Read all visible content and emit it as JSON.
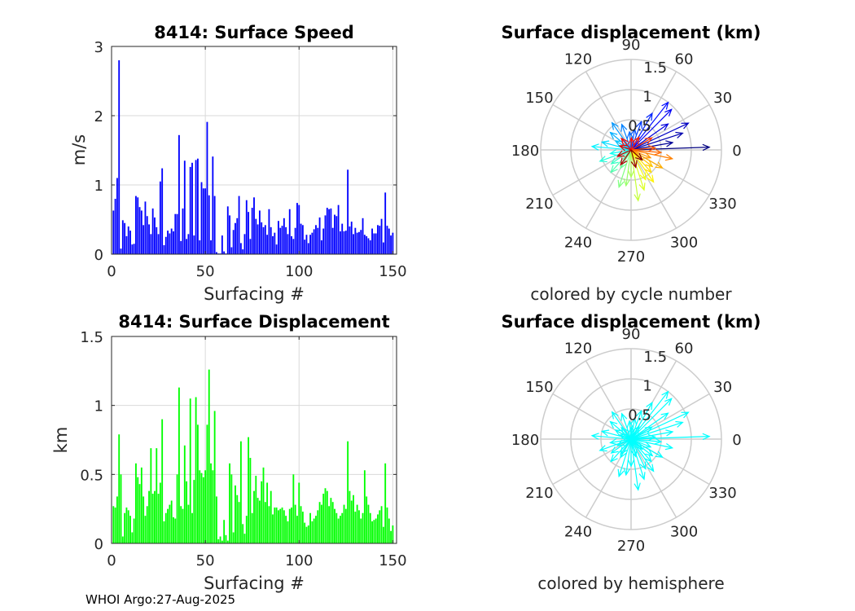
{
  "footer": "WHOI Argo:27-Aug-2025",
  "chart_data": [
    {
      "type": "bar",
      "title": "8414: Surface Speed",
      "xlabel": "Surfacing #",
      "ylabel": "m/s",
      "xlim": [
        0,
        152
      ],
      "ylim": [
        0,
        3
      ],
      "xticks": [
        0,
        50,
        100,
        150
      ],
      "yticks": [
        0,
        1,
        2,
        3
      ],
      "grid": true,
      "color": "#0000ff",
      "x": [
        1,
        2,
        3,
        4,
        5,
        6,
        7,
        8,
        9,
        10,
        11,
        12,
        13,
        14,
        15,
        16,
        17,
        18,
        19,
        20,
        21,
        22,
        23,
        24,
        25,
        26,
        27,
        28,
        29,
        30,
        31,
        32,
        33,
        34,
        35,
        36,
        37,
        38,
        39,
        40,
        41,
        42,
        43,
        44,
        45,
        46,
        47,
        48,
        49,
        50,
        51,
        52,
        53,
        54,
        55,
        56,
        57,
        58,
        59,
        60,
        61,
        62,
        63,
        64,
        65,
        66,
        67,
        68,
        69,
        70,
        71,
        72,
        73,
        74,
        75,
        76,
        77,
        78,
        79,
        80,
        81,
        82,
        83,
        84,
        85,
        86,
        87,
        88,
        89,
        90,
        91,
        92,
        93,
        94,
        95,
        96,
        97,
        98,
        99,
        100,
        101,
        102,
        103,
        104,
        105,
        106,
        107,
        108,
        109,
        110,
        111,
        112,
        113,
        114,
        115,
        116,
        117,
        118,
        119,
        120,
        121,
        122,
        123,
        124,
        125,
        126,
        127,
        128,
        129,
        130,
        131,
        132,
        133,
        134,
        135,
        136,
        137,
        138,
        139,
        140,
        141,
        142,
        143,
        144,
        145,
        146,
        147,
        148,
        149,
        150
      ],
      "values": [
        0.63,
        0.8,
        1.1,
        2.8,
        0.08,
        0.49,
        0.45,
        0.26,
        0.4,
        0.34,
        0.14,
        0.15,
        0.84,
        0.82,
        0.68,
        0.63,
        0.42,
        0.76,
        0.55,
        0.43,
        0.29,
        0.66,
        0.53,
        0.39,
        0.29,
        1.05,
        1.24,
        0.13,
        0.25,
        0.34,
        0.3,
        0.37,
        0.33,
        0.58,
        0.58,
        1.72,
        0.19,
        0.66,
        1.35,
        0.22,
        0.29,
        1.26,
        1.32,
        0.27,
        1.36,
        1.38,
        0.2,
        1.04,
        0.95,
        0.95,
        1.91,
        0.85,
        0.2,
        1.41,
        0.84,
        0.03,
        0.01,
        0.01,
        0.27,
        0.04,
        0.01,
        0.69,
        0.56,
        0.1,
        0.35,
        0.45,
        0.52,
        0.84,
        0.16,
        0.07,
        0.29,
        0.78,
        0.61,
        0.22,
        0.67,
        0.82,
        0.51,
        0.43,
        0.63,
        0.46,
        0.39,
        0.42,
        0.28,
        0.65,
        0.39,
        0.26,
        0.31,
        0.14,
        0.48,
        0.38,
        0.41,
        0.52,
        0.39,
        0.29,
        0.65,
        0.26,
        0.22,
        0.38,
        0.74,
        0.71,
        0.44,
        0.42,
        0.21,
        0.28,
        0.16,
        0.28,
        0.31,
        0.36,
        0.42,
        0.38,
        0.53,
        0.2,
        0.37,
        0.56,
        0.67,
        0.65,
        0.66,
        0.38,
        0.57,
        0.55,
        0.71,
        0.33,
        0.44,
        0.33,
        0.34,
        1.22,
        0.4,
        0.47,
        0.29,
        0.38,
        0.31,
        0.32,
        0.35,
        0.52,
        0.28,
        0.26,
        0.23,
        0.2,
        0.37,
        0.3,
        0.3,
        0.42,
        0.41,
        0.51,
        0.17,
        0.89,
        0.41,
        0.37,
        0.27,
        0.31
      ]
    },
    {
      "type": "bar",
      "title": "8414: Surface Displacement",
      "xlabel": "Surfacing #",
      "ylabel": "km",
      "xlim": [
        0,
        152
      ],
      "ylim": [
        0,
        1.5
      ],
      "xticks": [
        0,
        50,
        100,
        150
      ],
      "yticks": [
        0,
        0.5,
        1,
        1.5
      ],
      "grid": true,
      "color": "#00ff00",
      "x": [
        1,
        2,
        3,
        4,
        5,
        6,
        7,
        8,
        9,
        10,
        11,
        12,
        13,
        14,
        15,
        16,
        17,
        18,
        19,
        20,
        21,
        22,
        23,
        24,
        25,
        26,
        27,
        28,
        29,
        30,
        31,
        32,
        33,
        34,
        35,
        36,
        37,
        38,
        39,
        40,
        41,
        42,
        43,
        44,
        45,
        46,
        47,
        48,
        49,
        50,
        51,
        52,
        53,
        54,
        55,
        56,
        57,
        58,
        59,
        60,
        61,
        62,
        63,
        64,
        65,
        66,
        67,
        68,
        69,
        70,
        71,
        72,
        73,
        74,
        75,
        76,
        77,
        78,
        79,
        80,
        81,
        82,
        83,
        84,
        85,
        86,
        87,
        88,
        89,
        90,
        91,
        92,
        93,
        94,
        95,
        96,
        97,
        98,
        99,
        100,
        101,
        102,
        103,
        104,
        105,
        106,
        107,
        108,
        109,
        110,
        111,
        112,
        113,
        114,
        115,
        116,
        117,
        118,
        119,
        120,
        121,
        122,
        123,
        124,
        125,
        126,
        127,
        128,
        129,
        130,
        131,
        132,
        133,
        134,
        135,
        136,
        137,
        138,
        139,
        140,
        141,
        142,
        143,
        144,
        145,
        146,
        147,
        148,
        149,
        150
      ],
      "values": [
        0.27,
        0.26,
        0.34,
        0.79,
        0.5,
        0.05,
        0.22,
        0.26,
        0.24,
        0.2,
        0.08,
        0.18,
        0.58,
        0.48,
        0.43,
        0.55,
        0.34,
        0.2,
        0.27,
        0.38,
        0.69,
        0.36,
        0.38,
        0.69,
        0.36,
        0.44,
        0.9,
        0.16,
        0.22,
        0.25,
        0.28,
        0.31,
        0.19,
        0.18,
        0.5,
        1.13,
        0.27,
        0.25,
        0.71,
        0.45,
        0.28,
        1.05,
        0.22,
        0.46,
        1.06,
        0.86,
        0.53,
        0.51,
        0.48,
        0.53,
        0.86,
        1.26,
        0.58,
        0.53,
        0.96,
        0.34,
        0.03,
        0.05,
        0.02,
        0.17,
        0.06,
        0.02,
        0.58,
        0.5,
        0.08,
        0.42,
        0.35,
        0.3,
        0.74,
        0.14,
        0.07,
        0.2,
        0.77,
        0.62,
        0.22,
        0.38,
        0.49,
        0.33,
        0.31,
        0.45,
        0.55,
        0.3,
        0.44,
        0.27,
        0.38,
        0.21,
        0.26,
        0.26,
        0.24,
        0.25,
        0.26,
        0.24,
        0.2,
        0.16,
        0.25,
        0.26,
        0.5,
        0.28,
        0.2,
        0.44,
        0.27,
        0.23,
        0.15,
        0.12,
        0.13,
        0.22,
        0.16,
        0.18,
        0.2,
        0.24,
        0.3,
        0.28,
        0.36,
        0.4,
        0.38,
        0.27,
        0.33,
        0.3,
        0.25,
        0.22,
        0.18,
        0.2,
        0.22,
        0.28,
        0.25,
        0.74,
        0.38,
        0.31,
        0.35,
        0.23,
        0.28,
        0.24,
        0.18,
        0.22,
        0.53,
        0.34,
        0.28,
        0.22,
        0.16,
        0.17,
        0.18,
        0.21,
        0.24,
        0.27,
        0.12,
        0.58,
        0.26,
        0.18,
        0.09,
        0.13
      ]
    },
    {
      "type": "polar-quiver",
      "title": "Surface displacement (km)",
      "caption": "colored by cycle number",
      "rlim": [
        0,
        1.5
      ],
      "rticks": [
        "0.5",
        "1",
        "1.5"
      ],
      "thetaticks": [
        "0",
        "30",
        "60",
        "90",
        "120",
        "150",
        "180",
        "210",
        "240",
        "270",
        "300",
        "330"
      ],
      "color_mode": "cycle",
      "vectors": [
        {
          "angle_deg": 2,
          "r": 1.3
        },
        {
          "angle_deg": 10,
          "r": 0.7
        },
        {
          "angle_deg": 18,
          "r": 0.9
        },
        {
          "angle_deg": 25,
          "r": 1.05
        },
        {
          "angle_deg": 35,
          "r": 0.75
        },
        {
          "angle_deg": 45,
          "r": 0.95
        },
        {
          "angle_deg": 52,
          "r": 1.0
        },
        {
          "angle_deg": 60,
          "r": 0.7
        },
        {
          "angle_deg": 70,
          "r": 0.5
        },
        {
          "angle_deg": 80,
          "r": 0.35
        },
        {
          "angle_deg": 95,
          "r": 0.3
        },
        {
          "angle_deg": 110,
          "r": 0.45
        },
        {
          "angle_deg": 125,
          "r": 0.55
        },
        {
          "angle_deg": 140,
          "r": 0.45
        },
        {
          "angle_deg": 150,
          "r": 0.3
        },
        {
          "angle_deg": 165,
          "r": 0.5
        },
        {
          "angle_deg": 175,
          "r": 0.65
        },
        {
          "angle_deg": 190,
          "r": 0.35
        },
        {
          "angle_deg": 200,
          "r": 0.55
        },
        {
          "angle_deg": 215,
          "r": 0.4
        },
        {
          "angle_deg": 228,
          "r": 0.5
        },
        {
          "angle_deg": 240,
          "r": 0.35
        },
        {
          "angle_deg": 252,
          "r": 0.65
        },
        {
          "angle_deg": 262,
          "r": 0.6
        },
        {
          "angle_deg": 270,
          "r": 0.45
        },
        {
          "angle_deg": 278,
          "r": 0.85
        },
        {
          "angle_deg": 288,
          "r": 0.7
        },
        {
          "angle_deg": 296,
          "r": 0.55
        },
        {
          "angle_deg": 305,
          "r": 0.65
        },
        {
          "angle_deg": 312,
          "r": 0.5
        },
        {
          "angle_deg": 322,
          "r": 0.45
        },
        {
          "angle_deg": 330,
          "r": 0.6
        },
        {
          "angle_deg": 338,
          "r": 0.35
        },
        {
          "angle_deg": 348,
          "r": 0.7
        },
        {
          "angle_deg": 355,
          "r": 0.5
        },
        {
          "angle_deg": 5,
          "r": 0.4
        },
        {
          "angle_deg": 30,
          "r": 0.4
        },
        {
          "angle_deg": 58,
          "r": 0.25
        },
        {
          "angle_deg": 88,
          "r": 0.2
        },
        {
          "angle_deg": 130,
          "r": 0.25
        },
        {
          "angle_deg": 160,
          "r": 0.2
        },
        {
          "angle_deg": 205,
          "r": 0.25
        },
        {
          "angle_deg": 235,
          "r": 0.3
        },
        {
          "angle_deg": 285,
          "r": 0.3
        },
        {
          "angle_deg": 318,
          "r": 0.25
        }
      ]
    },
    {
      "type": "polar-quiver",
      "title": "Surface displacement (km)",
      "caption": "colored by hemisphere",
      "rlim": [
        0,
        1.5
      ],
      "rticks": [
        "0.5",
        "1",
        "1.5"
      ],
      "thetaticks": [
        "0",
        "30",
        "60",
        "90",
        "120",
        "150",
        "180",
        "210",
        "240",
        "270",
        "300",
        "330"
      ],
      "color_mode": "single",
      "color": "#00ffff",
      "vectors": [
        {
          "angle_deg": 2,
          "r": 1.3
        },
        {
          "angle_deg": 10,
          "r": 0.7
        },
        {
          "angle_deg": 18,
          "r": 0.9
        },
        {
          "angle_deg": 25,
          "r": 1.05
        },
        {
          "angle_deg": 35,
          "r": 0.75
        },
        {
          "angle_deg": 45,
          "r": 0.95
        },
        {
          "angle_deg": 52,
          "r": 1.0
        },
        {
          "angle_deg": 60,
          "r": 0.7
        },
        {
          "angle_deg": 70,
          "r": 0.5
        },
        {
          "angle_deg": 80,
          "r": 0.35
        },
        {
          "angle_deg": 95,
          "r": 0.3
        },
        {
          "angle_deg": 110,
          "r": 0.45
        },
        {
          "angle_deg": 125,
          "r": 0.55
        },
        {
          "angle_deg": 140,
          "r": 0.45
        },
        {
          "angle_deg": 150,
          "r": 0.3
        },
        {
          "angle_deg": 165,
          "r": 0.5
        },
        {
          "angle_deg": 175,
          "r": 0.65
        },
        {
          "angle_deg": 190,
          "r": 0.35
        },
        {
          "angle_deg": 200,
          "r": 0.55
        },
        {
          "angle_deg": 215,
          "r": 0.4
        },
        {
          "angle_deg": 228,
          "r": 0.5
        },
        {
          "angle_deg": 240,
          "r": 0.35
        },
        {
          "angle_deg": 252,
          "r": 0.65
        },
        {
          "angle_deg": 262,
          "r": 0.6
        },
        {
          "angle_deg": 270,
          "r": 0.45
        },
        {
          "angle_deg": 278,
          "r": 0.85
        },
        {
          "angle_deg": 288,
          "r": 0.7
        },
        {
          "angle_deg": 296,
          "r": 0.55
        },
        {
          "angle_deg": 305,
          "r": 0.65
        },
        {
          "angle_deg": 312,
          "r": 0.5
        },
        {
          "angle_deg": 322,
          "r": 0.45
        },
        {
          "angle_deg": 330,
          "r": 0.6
        },
        {
          "angle_deg": 338,
          "r": 0.35
        },
        {
          "angle_deg": 348,
          "r": 0.7
        },
        {
          "angle_deg": 355,
          "r": 0.5
        },
        {
          "angle_deg": 5,
          "r": 0.4
        },
        {
          "angle_deg": 30,
          "r": 0.4
        },
        {
          "angle_deg": 58,
          "r": 0.25
        },
        {
          "angle_deg": 88,
          "r": 0.2
        },
        {
          "angle_deg": 130,
          "r": 0.25
        },
        {
          "angle_deg": 160,
          "r": 0.2
        },
        {
          "angle_deg": 205,
          "r": 0.25
        },
        {
          "angle_deg": 235,
          "r": 0.3
        },
        {
          "angle_deg": 285,
          "r": 0.3
        },
        {
          "angle_deg": 318,
          "r": 0.25
        }
      ]
    }
  ]
}
